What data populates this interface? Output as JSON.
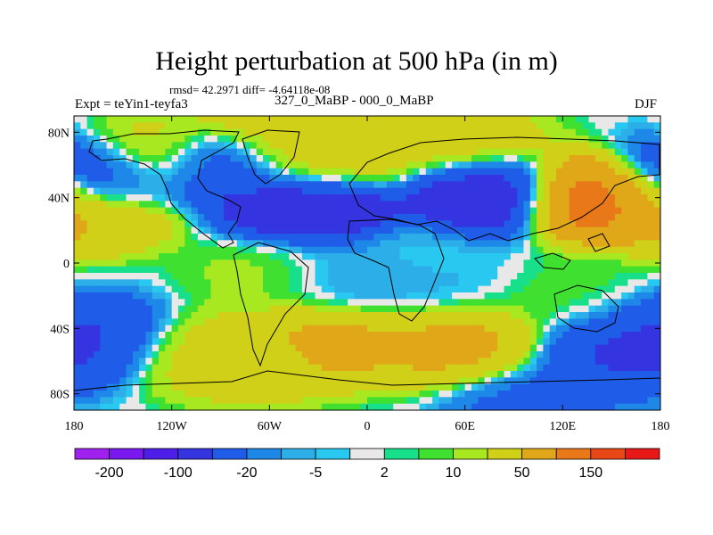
{
  "chart_data": {
    "type": "heatmap",
    "title": "Height perturbation at 500 hPa (in m)",
    "stats_line": "rmsd= 42.2971 diff= -4.64118e-08",
    "left_label": "Expt = teYin1-teyfa3",
    "center_label": "327_0_MaBP - 000_0_MaBP",
    "right_label": "DJF",
    "x_axis": {
      "range": [
        -180,
        180
      ],
      "ticks": [
        {
          "value": -180,
          "label": "180"
        },
        {
          "value": -120,
          "label": "120W"
        },
        {
          "value": -60,
          "label": "60W"
        },
        {
          "value": 0,
          "label": "0"
        },
        {
          "value": 60,
          "label": "60E"
        },
        {
          "value": 120,
          "label": "120E"
        },
        {
          "value": 180,
          "label": "180"
        }
      ]
    },
    "y_axis": {
      "range": [
        -90,
        90
      ],
      "ticks": [
        {
          "value": 80,
          "label": "80N"
        },
        {
          "value": 40,
          "label": "40N"
        },
        {
          "value": 0,
          "label": "0"
        },
        {
          "value": -40,
          "label": "40S"
        },
        {
          "value": -80,
          "label": "80S"
        }
      ]
    },
    "colorbar": {
      "colors": [
        "#a020f0",
        "#7a18f0",
        "#4d1ee8",
        "#3434e0",
        "#1f5ce8",
        "#1e88e8",
        "#2caee8",
        "#28c8f0",
        "#e8e8e8",
        "#18e08a",
        "#40e030",
        "#a8e820",
        "#d0d018",
        "#e0a818",
        "#e87818",
        "#e84818",
        "#e81818"
      ],
      "labels": [
        "-200",
        "-100",
        "-20",
        "-5",
        "2",
        "10",
        "50",
        "150"
      ]
    },
    "field_centers": [
      {
        "lon": -165,
        "lat": 52,
        "value": -90
      },
      {
        "lon": -130,
        "lat": 62,
        "value": 60
      },
      {
        "lon": -90,
        "lat": 58,
        "value": -80
      },
      {
        "lon": -45,
        "lat": 62,
        "value": 40
      },
      {
        "lon": -35,
        "lat": 35,
        "value": -120
      },
      {
        "lon": -15,
        "lat": 65,
        "value": 45
      },
      {
        "lon": 60,
        "lat": 72,
        "value": 40
      },
      {
        "lon": 75,
        "lat": 42,
        "value": -110
      },
      {
        "lon": 140,
        "lat": 40,
        "value": 170
      },
      {
        "lon": -168,
        "lat": 32,
        "value": 60
      },
      {
        "lon": -60,
        "lat": -5,
        "value": 15
      },
      {
        "lon": -10,
        "lat": -8,
        "value": -15
      },
      {
        "lon": 40,
        "lat": -10,
        "value": -10
      },
      {
        "lon": 120,
        "lat": -20,
        "value": 8
      },
      {
        "lon": 30,
        "lat": 0,
        "value": 1
      },
      {
        "lon": -170,
        "lat": -45,
        "value": -60
      },
      {
        "lon": -100,
        "lat": -55,
        "value": 30
      },
      {
        "lon": -70,
        "lat": -60,
        "value": 40
      },
      {
        "lon": -25,
        "lat": -50,
        "value": 70
      },
      {
        "lon": 55,
        "lat": -50,
        "value": 70
      },
      {
        "lon": 155,
        "lat": -55,
        "value": -60
      },
      {
        "lon": 100,
        "lat": -85,
        "value": -30
      },
      {
        "lon": -60,
        "lat": 85,
        "value": 40
      }
    ]
  }
}
